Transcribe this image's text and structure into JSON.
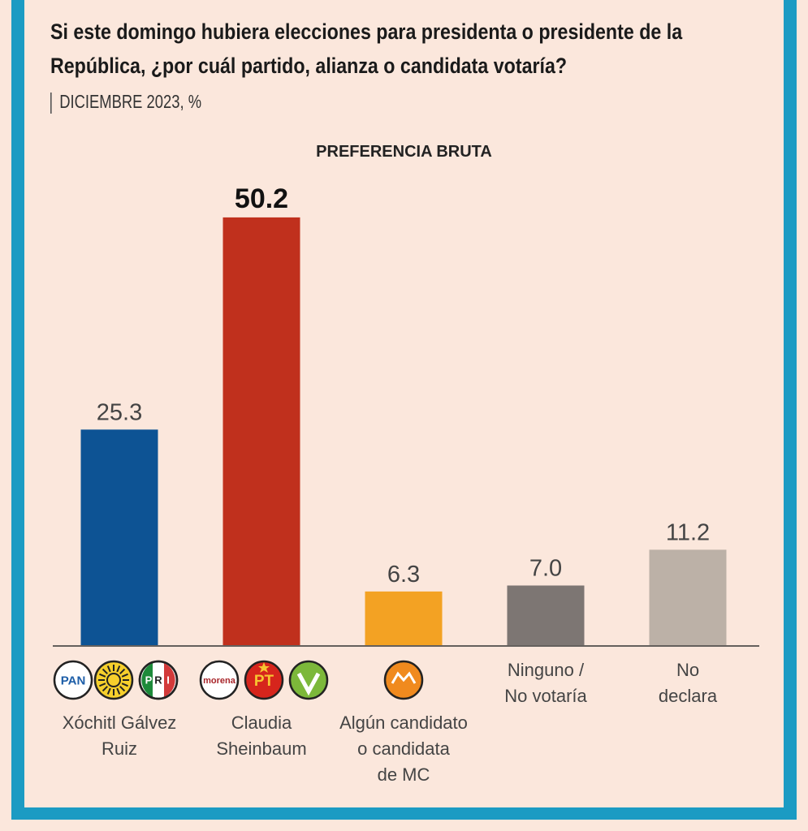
{
  "title": "Si este domingo hubiera elecciones para presidenta o presidente de la República, ¿por cuál partido, alianza o candidata votaría?",
  "subtitle": "DICIEMBRE 2023, %",
  "chart_data": {
    "type": "bar",
    "title": "PREFERENCIA BRUTA",
    "categories": [
      "Xóchitl Gálvez Ruiz",
      "Claudia Sheinbaum",
      "Algún candidato o candidata de MC",
      "Ninguno / No votaría",
      "No declara"
    ],
    "values": [
      25.3,
      50.2,
      6.3,
      7.0,
      11.2
    ],
    "value_labels": [
      "25.3",
      "50.2",
      "6.3",
      "7.0",
      "11.2"
    ],
    "colors": [
      "#0d5394",
      "#c0301d",
      "#f3a223",
      "#7d7673",
      "#bcb1a7"
    ],
    "logos": [
      [
        "PAN",
        "PRD",
        "PRI"
      ],
      [
        "morena",
        "PT",
        "PVEM"
      ],
      [
        "MC"
      ],
      [],
      []
    ],
    "ylim": [
      0,
      55
    ],
    "grid": false
  },
  "labels": {
    "cat0": [
      "Xóchitl Gálvez",
      "Ruiz"
    ],
    "cat1": [
      "Claudia",
      "Sheinbaum"
    ],
    "cat2": [
      "Algún candidato",
      "o candidata",
      "de MC"
    ],
    "cat3": [
      "Ninguno /",
      "No votaría"
    ],
    "cat4": [
      "No",
      "declara"
    ]
  },
  "logo_text": {
    "pan": "PAN",
    "pri_p": "P",
    "pri_r": "R",
    "pri_i": "I",
    "morena": "morena",
    "pt": "PT"
  }
}
